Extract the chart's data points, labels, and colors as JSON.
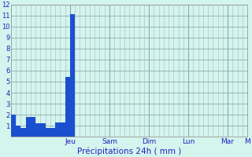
{
  "bar_values": [
    2.0,
    1.0,
    0.8,
    1.8,
    1.8,
    1.2,
    1.2,
    0.8,
    0.8,
    1.3,
    1.3,
    5.4,
    11.1,
    0,
    0,
    0,
    0,
    0,
    0,
    0,
    0,
    0,
    0,
    0,
    0,
    0,
    0,
    0,
    0,
    0,
    0,
    0,
    0,
    0,
    0,
    0,
    0,
    0,
    0,
    0,
    0,
    0,
    0,
    0,
    0,
    0,
    0,
    0
  ],
  "n_bars": 48,
  "day_labels": [
    "Jeu",
    "Sam",
    "Dim",
    "Lun",
    "Mar",
    "M"
  ],
  "day_tick_positions": [
    12,
    20,
    28,
    36,
    44,
    48
  ],
  "day_line_positions": [
    12,
    20,
    28,
    36,
    44
  ],
  "xlabel": "Précipitations 24h ( mm )",
  "ylim": [
    0,
    12
  ],
  "yticks": [
    1,
    2,
    3,
    4,
    5,
    6,
    7,
    8,
    9,
    10,
    11,
    12
  ],
  "bar_color": "#1a50d0",
  "background_color": "#d4f4ee",
  "grid_color": "#aababa",
  "grid_color_major": "#8aacac",
  "tick_label_color": "#2222bb",
  "xlabel_color": "#2222bb",
  "figsize": [
    3.2,
    2.0
  ],
  "dpi": 100
}
